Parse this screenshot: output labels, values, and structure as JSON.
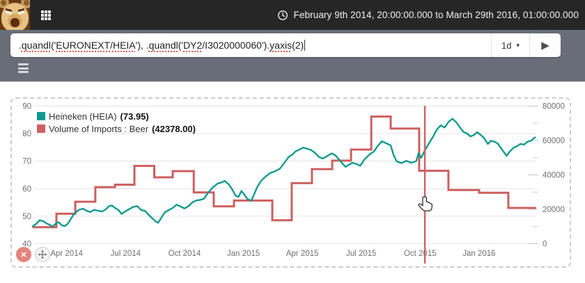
{
  "topbar": {
    "date_range": "February 9th 2014, 20:00:00.000 to March 29th 2016, 01:00:00.000"
  },
  "toolbar": {
    "formula_tokens": [
      {
        "text": ".",
        "misspelled": false
      },
      {
        "text": "quandl",
        "misspelled": true
      },
      {
        "text": "('",
        "misspelled": false
      },
      {
        "text": "EURONEXT",
        "misspelled": true
      },
      {
        "text": "/",
        "misspelled": false
      },
      {
        "text": "HEIA",
        "misspelled": true
      },
      {
        "text": "'), .",
        "misspelled": false
      },
      {
        "text": "quandl",
        "misspelled": true
      },
      {
        "text": "('",
        "misspelled": false
      },
      {
        "text": "DY2",
        "misspelled": true
      },
      {
        "text": "/I3020000060').",
        "misspelled": false
      },
      {
        "text": "yaxis",
        "misspelled": true
      },
      {
        "text": "(2)",
        "misspelled": false
      }
    ],
    "interval": "1d",
    "chevron_icon": "▾",
    "play_icon": "▶"
  },
  "buttons": {
    "close_icon": "×"
  },
  "chart_data": {
    "type": "line",
    "x_axis": {
      "unit": "months since Feb 1 2014",
      "ticks": [
        {
          "m": 2,
          "label": "Apr 2014"
        },
        {
          "m": 5,
          "label": "Jul 2014"
        },
        {
          "m": 8,
          "label": "Oct 2014"
        },
        {
          "m": 11,
          "label": "Jan 2015"
        },
        {
          "m": 14,
          "label": "Apr 2015"
        },
        {
          "m": 17,
          "label": "Jul 2015"
        },
        {
          "m": 20,
          "label": "Oct 2015"
        },
        {
          "m": 23,
          "label": "Jan 2016"
        }
      ],
      "range_months": [
        0.27,
        25.9
      ]
    },
    "y_left": {
      "min": 40,
      "max": 90,
      "ticks": [
        90,
        80,
        70,
        60,
        50,
        40
      ]
    },
    "y_right": {
      "min": 0,
      "max": 80000,
      "ticks": [
        80000,
        60000,
        40000,
        20000,
        0
      ],
      "minor_ticks": [
        70000,
        50000,
        30000,
        10000
      ]
    },
    "grid": true,
    "legend_position": "top-left-inside",
    "series": [
      {
        "name": "Heineken (HEIA)",
        "value_label": "(73.95)",
        "current_value": 73.95,
        "color": "#0e9a8f",
        "axis": "left",
        "style": "line",
        "points": [
          [
            0.27,
            46.3
          ],
          [
            0.45,
            47.2
          ],
          [
            0.62,
            48.5
          ],
          [
            0.8,
            48.2
          ],
          [
            1.0,
            47.3
          ],
          [
            1.15,
            46.8
          ],
          [
            1.3,
            46.2
          ],
          [
            1.45,
            47.4
          ],
          [
            1.6,
            47.8
          ],
          [
            1.75,
            46.7
          ],
          [
            1.9,
            46.4
          ],
          [
            2.05,
            47.2
          ],
          [
            2.2,
            48.8
          ],
          [
            2.35,
            50.6
          ],
          [
            2.5,
            51.6
          ],
          [
            2.65,
            52.4
          ],
          [
            2.85,
            52.7
          ],
          [
            3.0,
            52.0
          ],
          [
            3.2,
            51.5
          ],
          [
            3.4,
            52.3
          ],
          [
            3.6,
            52.0
          ],
          [
            3.8,
            51.7
          ],
          [
            4.0,
            52.5
          ],
          [
            4.15,
            53.6
          ],
          [
            4.3,
            53.9
          ],
          [
            4.5,
            52.8
          ],
          [
            4.65,
            52.2
          ],
          [
            4.8,
            50.8
          ],
          [
            5.0,
            51.8
          ],
          [
            5.2,
            52.6
          ],
          [
            5.4,
            53.4
          ],
          [
            5.6,
            53.6
          ],
          [
            5.8,
            52.2
          ],
          [
            6.0,
            51.9
          ],
          [
            6.2,
            50.3
          ],
          [
            6.4,
            49.0
          ],
          [
            6.55,
            48.0
          ],
          [
            6.66,
            47.6
          ],
          [
            6.85,
            49.8
          ],
          [
            7.0,
            51.4
          ],
          [
            7.2,
            52.2
          ],
          [
            7.4,
            53.0
          ],
          [
            7.6,
            54.2
          ],
          [
            7.8,
            53.5
          ],
          [
            8.0,
            52.8
          ],
          [
            8.2,
            53.6
          ],
          [
            8.4,
            55.0
          ],
          [
            8.6,
            55.7
          ],
          [
            8.8,
            55.9
          ],
          [
            9.0,
            56.4
          ],
          [
            9.2,
            58.5
          ],
          [
            9.45,
            60.5
          ],
          [
            9.7,
            61.9
          ],
          [
            9.9,
            62.3
          ],
          [
            10.05,
            62.8
          ],
          [
            10.25,
            61.6
          ],
          [
            10.45,
            59.5
          ],
          [
            10.6,
            57.5
          ],
          [
            10.75,
            57.0
          ],
          [
            10.9,
            59.2
          ],
          [
            11.05,
            57.8
          ],
          [
            11.2,
            56.3
          ],
          [
            11.4,
            55.6
          ],
          [
            11.55,
            58.0
          ],
          [
            11.7,
            60.5
          ],
          [
            11.9,
            62.8
          ],
          [
            12.1,
            64.2
          ],
          [
            12.35,
            65.6
          ],
          [
            12.6,
            66.3
          ],
          [
            12.85,
            67.2
          ],
          [
            13.1,
            69.5
          ],
          [
            13.3,
            71.5
          ],
          [
            13.5,
            72.4
          ],
          [
            13.65,
            73.5
          ],
          [
            13.85,
            74.2
          ],
          [
            14.05,
            74.9
          ],
          [
            14.25,
            74.5
          ],
          [
            14.45,
            74.0
          ],
          [
            14.65,
            73.0
          ],
          [
            14.85,
            71.5
          ],
          [
            15.05,
            70.9
          ],
          [
            15.25,
            71.8
          ],
          [
            15.5,
            72.8
          ],
          [
            15.7,
            72.0
          ],
          [
            16.0,
            69.5
          ],
          [
            16.2,
            67.9
          ],
          [
            16.4,
            68.8
          ],
          [
            16.55,
            69.4
          ],
          [
            16.75,
            69.0
          ],
          [
            16.95,
            68.3
          ],
          [
            17.15,
            70.5
          ],
          [
            17.4,
            72.3
          ],
          [
            17.65,
            73.5
          ],
          [
            17.85,
            75.6
          ],
          [
            18.05,
            77.2
          ],
          [
            18.3,
            76.4
          ],
          [
            18.5,
            75.7
          ],
          [
            18.65,
            72.2
          ],
          [
            18.8,
            69.9
          ],
          [
            19.05,
            69.3
          ],
          [
            19.3,
            70.1
          ],
          [
            19.55,
            69.4
          ],
          [
            19.8,
            70.0
          ],
          [
            19.92,
            72.9
          ],
          [
            20.05,
            71.2
          ],
          [
            20.24,
            73.95
          ],
          [
            20.45,
            76.5
          ],
          [
            20.65,
            78.8
          ],
          [
            20.85,
            81.5
          ],
          [
            21.05,
            83.0
          ],
          [
            21.25,
            82.2
          ],
          [
            21.45,
            84.3
          ],
          [
            21.65,
            85.4
          ],
          [
            21.85,
            84.0
          ],
          [
            22.0,
            82.5
          ],
          [
            22.2,
            80.6
          ],
          [
            22.4,
            80.0
          ],
          [
            22.55,
            79.0
          ],
          [
            22.72,
            79.4
          ],
          [
            22.9,
            80.5
          ],
          [
            23.07,
            79.6
          ],
          [
            23.25,
            78.4
          ],
          [
            23.45,
            76.2
          ],
          [
            23.6,
            77.4
          ],
          [
            23.8,
            77.0
          ],
          [
            23.95,
            76.4
          ],
          [
            24.15,
            74.4
          ],
          [
            24.4,
            71.9
          ],
          [
            24.55,
            73.4
          ],
          [
            24.75,
            74.8
          ],
          [
            24.95,
            75.5
          ],
          [
            25.1,
            76.2
          ],
          [
            25.3,
            76.0
          ],
          [
            25.45,
            77.0
          ],
          [
            25.65,
            77.4
          ],
          [
            25.85,
            78.6
          ]
        ]
      },
      {
        "name": "Volume of Imports : Beer",
        "value_label": "(42378.00)",
        "current_value": 42378.0,
        "color": "#cd5f5f",
        "axis": "right",
        "style": "step",
        "segments": [
          [
            0.27,
            1.48,
            9600
          ],
          [
            1.48,
            2.44,
            17400
          ],
          [
            2.44,
            3.46,
            24400
          ],
          [
            3.46,
            4.46,
            32900
          ],
          [
            4.46,
            5.45,
            34300
          ],
          [
            5.45,
            6.46,
            45200
          ],
          [
            6.46,
            7.4,
            38600
          ],
          [
            7.4,
            8.47,
            42200
          ],
          [
            8.47,
            9.49,
            29800
          ],
          [
            9.49,
            10.52,
            21700
          ],
          [
            10.52,
            12.47,
            25100
          ],
          [
            12.47,
            13.46,
            13650
          ],
          [
            13.46,
            14.49,
            35200
          ],
          [
            14.49,
            15.52,
            43300
          ],
          [
            15.52,
            16.48,
            48300
          ],
          [
            16.48,
            17.51,
            54700
          ],
          [
            17.51,
            18.5,
            73900
          ],
          [
            18.5,
            19.95,
            66900
          ],
          [
            19.95,
            21.44,
            42378
          ],
          [
            21.44,
            23.0,
            31200
          ],
          [
            23.0,
            24.49,
            29600
          ],
          [
            24.49,
            25.9,
            20800
          ]
        ]
      }
    ],
    "cursor": {
      "x_month": 20.24,
      "color": "#d06060"
    }
  }
}
